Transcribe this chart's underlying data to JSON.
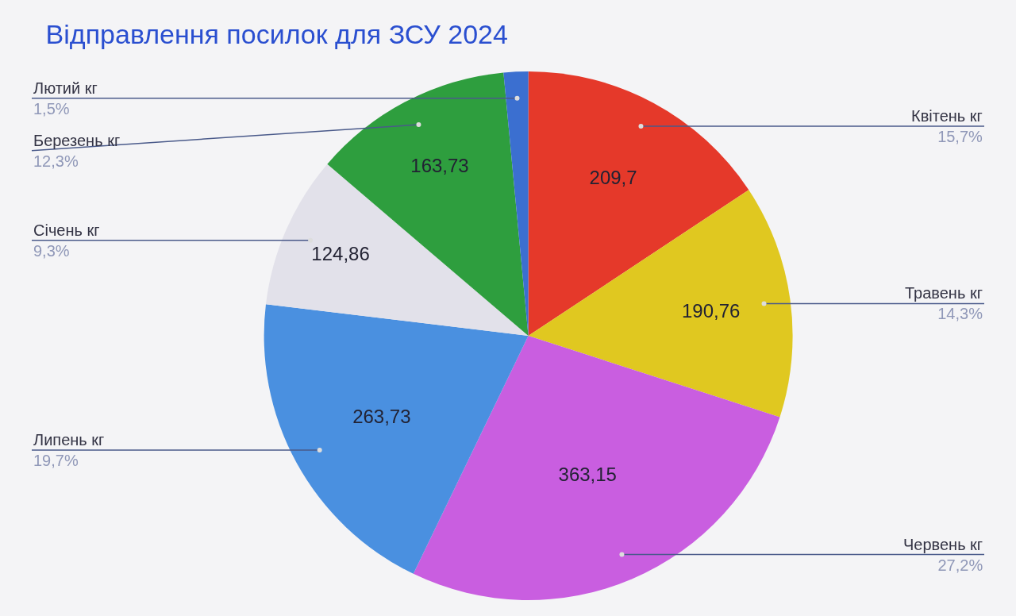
{
  "chart_data": {
    "type": "pie",
    "title": "Відправлення посилок для ЗСУ 2024",
    "categories": [
      "Квітень кг",
      "Травень кг",
      "Червень кг",
      "Липень кг",
      "Січень кг",
      "Березень кг",
      "Лютий кг"
    ],
    "values": [
      209.7,
      190.76,
      363.15,
      263.73,
      124.86,
      163.73,
      20
    ],
    "annotations": [
      "15,7%",
      "14,3%",
      "27,2%",
      "19,7%",
      "9,3%",
      "12,3%",
      "1,5%"
    ],
    "value_labels": [
      "209,7",
      "190,76",
      "363,15",
      "263,73",
      "124,86",
      "163,73",
      null
    ],
    "colors": [
      "#e5392a",
      "#e0c820",
      "#c95ee0",
      "#4a90e0",
      "#e2e1ea",
      "#2e9e3e",
      "#3b6fd0"
    ],
    "legend": false
  }
}
